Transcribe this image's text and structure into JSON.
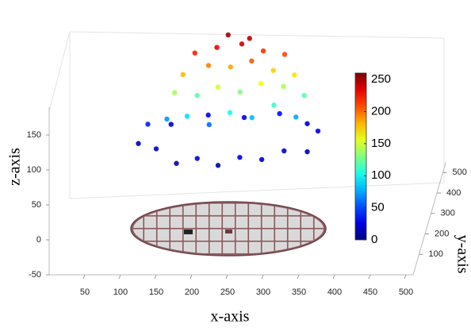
{
  "chart_data": {
    "type": "scatter3d",
    "x_label": "x-axis",
    "y_label": "y-axis",
    "z_label": "z-axis",
    "x": [
      100,
      130,
      160,
      190,
      220,
      250,
      280,
      310,
      340,
      350,
      330,
      290,
      240,
      190,
      140,
      110,
      140,
      170,
      200,
      230,
      260,
      290,
      320,
      180,
      150,
      210,
      240,
      270,
      300,
      330,
      160,
      195,
      225,
      255,
      285,
      315,
      175,
      205,
      240,
      270,
      300,
      220,
      250
    ],
    "y": [
      300,
      240,
      220,
      210,
      200,
      205,
      215,
      230,
      260,
      320,
      380,
      395,
      400,
      395,
      370,
      340,
      300,
      280,
      290,
      280,
      290,
      300,
      310,
      330,
      310,
      320,
      330,
      320,
      340,
      330,
      330,
      340,
      350,
      345,
      350,
      345,
      350,
      360,
      360,
      360,
      360,
      370,
      370
    ],
    "z": [
      50,
      60,
      45,
      55,
      48,
      58,
      52,
      60,
      50,
      62,
      55,
      65,
      58,
      63,
      57,
      66,
      85,
      95,
      80,
      100,
      90,
      105,
      85,
      110,
      120,
      125,
      115,
      130,
      120,
      110,
      140,
      150,
      145,
      155,
      140,
      135,
      165,
      170,
      175,
      165,
      160,
      185,
      180
    ],
    "values": [
      15,
      20,
      10,
      25,
      12,
      30,
      18,
      22,
      15,
      28,
      20,
      35,
      25,
      30,
      22,
      40,
      70,
      90,
      60,
      100,
      80,
      110,
      75,
      120,
      140,
      150,
      130,
      160,
      140,
      120,
      180,
      195,
      185,
      205,
      175,
      170,
      220,
      230,
      240,
      215,
      210,
      250,
      245
    ],
    "colormap": "jet",
    "xlim": [
      0,
      510
    ],
    "xticks": [
      50,
      100,
      150,
      200,
      250,
      300,
      350,
      400,
      450,
      500
    ],
    "ylim": [
      0,
      550
    ],
    "yticks": [
      100,
      200,
      300,
      400,
      500
    ],
    "zlim": [
      -50,
      190
    ],
    "zticks": [
      -50,
      0,
      50,
      100,
      150
    ],
    "clim": [
      0,
      260
    ],
    "cticks": [
      0,
      50,
      100,
      150,
      200,
      250
    ]
  }
}
